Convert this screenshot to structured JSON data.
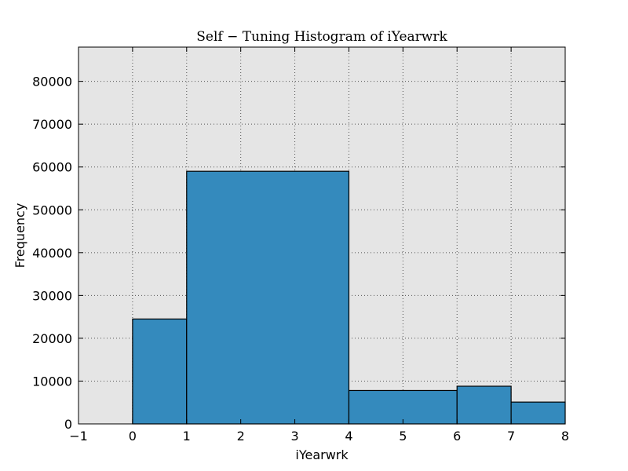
{
  "chart_data": {
    "type": "bar",
    "title": "Self − Tuning Histogram of iYearwrk",
    "xlabel": "iYearwrk",
    "ylabel": "Frequency",
    "xlim": [
      -1,
      8
    ],
    "ylim": [
      0,
      88000
    ],
    "x_ticks": [
      -1,
      0,
      1,
      2,
      3,
      4,
      5,
      6,
      7,
      8
    ],
    "x_tick_labels": [
      "−1",
      "0",
      "1",
      "2",
      "3",
      "4",
      "5",
      "6",
      "7",
      "8"
    ],
    "y_ticks": [
      0,
      10000,
      20000,
      30000,
      40000,
      50000,
      60000,
      70000,
      80000
    ],
    "y_tick_labels": [
      "0",
      "10000",
      "20000",
      "30000",
      "40000",
      "50000",
      "60000",
      "70000",
      "80000"
    ],
    "bins": [
      {
        "x0": 0,
        "x1": 1,
        "count": 24500
      },
      {
        "x0": 1,
        "x1": 4,
        "count": 59000
      },
      {
        "x0": 4,
        "x1": 6,
        "count": 7800
      },
      {
        "x0": 6,
        "x1": 7,
        "count": 8800
      },
      {
        "x0": 7,
        "x1": 8,
        "count": 5100
      }
    ],
    "grid": true,
    "colors": {
      "bar_fill": "#348abd",
      "bar_edge": "#000000",
      "plot_background": "#e5e5e5",
      "grid": "#555555"
    }
  }
}
